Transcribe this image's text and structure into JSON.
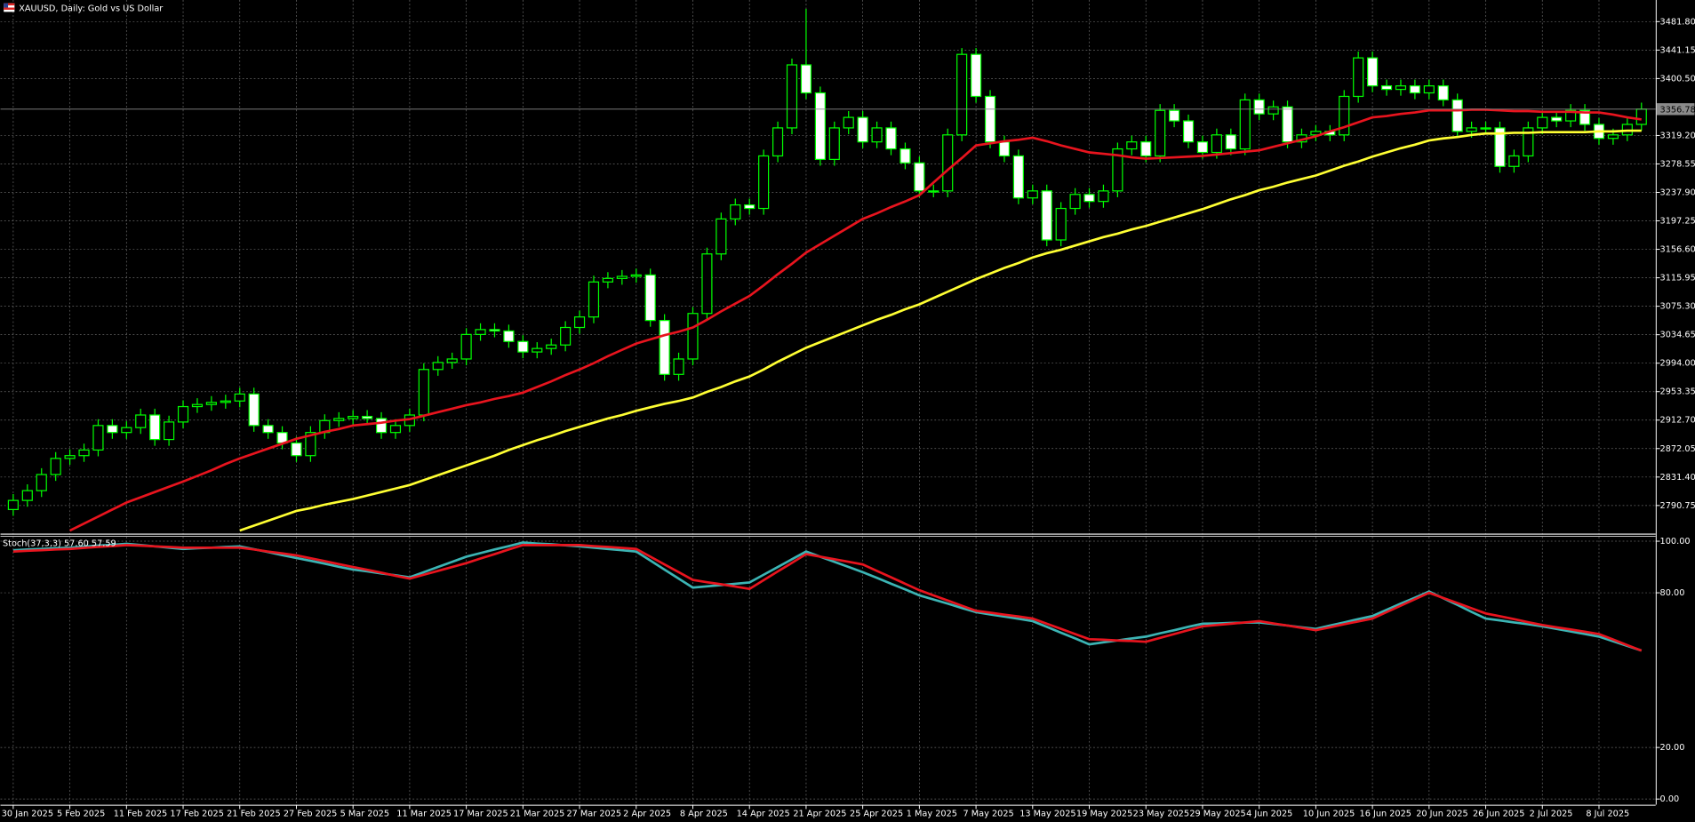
{
  "chart_data": [
    {
      "type": "candlestick",
      "title": "XAUUSD, Daily: Gold vs US Dollar",
      "categories": [
        "30 Jan 2025",
        null,
        null,
        null,
        "5 Feb 2025",
        null,
        null,
        null,
        "11 Feb 2025",
        null,
        null,
        null,
        "17 Feb 2025",
        null,
        null,
        null,
        "21 Feb 2025",
        null,
        null,
        null,
        "27 Feb 2025",
        null,
        null,
        null,
        "5 Mar 2025",
        null,
        null,
        null,
        "11 Mar 2025",
        null,
        null,
        null,
        "17 Mar 2025",
        null,
        null,
        null,
        "21 Mar 2025",
        null,
        null,
        null,
        "27 Mar 2025",
        null,
        null,
        null,
        "2 Apr 2025",
        null,
        null,
        null,
        "8 Apr 2025",
        null,
        null,
        null,
        "14 Apr 2025",
        null,
        null,
        null,
        "21 Apr 2025",
        null,
        null,
        null,
        "25 Apr 2025",
        null,
        null,
        null,
        "1 May 2025",
        null,
        null,
        null,
        "7 May 2025",
        null,
        null,
        null,
        "13 May 2025",
        null,
        null,
        null,
        "19 May 2025",
        null,
        null,
        null,
        "23 May 2025",
        null,
        null,
        null,
        "29 May 2025",
        null,
        null,
        null,
        "4 Jun 2025",
        null,
        null,
        null,
        "10 Jun 2025",
        null,
        null,
        null,
        "16 Jun 2025",
        null,
        null,
        null,
        "20 Jun 2025",
        null,
        null,
        null,
        "26 Jun 2025",
        null,
        null,
        null,
        "2 Jul 2025",
        null,
        null,
        null,
        "8 Jul 2025",
        null,
        null,
        null
      ],
      "open": [
        2785,
        2798,
        2812,
        2835,
        2858,
        2862,
        2870,
        2905,
        2895,
        2902,
        2920,
        2885,
        2910,
        2932,
        2935,
        2938,
        2940,
        2950,
        2905,
        2895,
        2880,
        2862,
        2895,
        2912,
        2915,
        2918,
        2915,
        2895,
        2905,
        2920,
        2985,
        2995,
        3000,
        3035,
        3042,
        3040,
        3025,
        3010,
        3015,
        3020,
        3045,
        3060,
        3110,
        3115,
        3118,
        3120,
        3055,
        2978,
        3000,
        3065,
        3150,
        3200,
        3220,
        3215,
        3290,
        3330,
        3420,
        3380,
        3285,
        3330,
        3345,
        3310,
        3330,
        3300,
        3280,
        3240,
        3240,
        3320,
        3435,
        3375,
        3310,
        3290,
        3230,
        3240,
        3170,
        3215,
        3235,
        3225,
        3240,
        3300,
        3310,
        3290,
        3355,
        3340,
        3310,
        3295,
        3320,
        3300,
        3370,
        3350,
        3360,
        3310,
        3320,
        3325,
        3320,
        3375,
        3430,
        3390,
        3385,
        3390,
        3380,
        3390,
        3370,
        3325,
        3330,
        3330,
        3275,
        3290,
        3330,
        3345,
        3340,
        3355,
        3335,
        3315,
        3320,
        3335
      ],
      "high": [
        2807,
        2821,
        2844,
        2867,
        2871,
        2879,
        2914,
        2914,
        2911,
        2929,
        2929,
        2919,
        2941,
        2944,
        2947,
        2949,
        2959,
        2959,
        2914,
        2904,
        2889,
        2904,
        2921,
        2924,
        2927,
        2927,
        2924,
        2914,
        2929,
        2994,
        3004,
        3009,
        3044,
        3051,
        3051,
        3049,
        3034,
        3024,
        3029,
        3054,
        3069,
        3119,
        3124,
        3127,
        3129,
        3129,
        3064,
        3009,
        3074,
        3159,
        3209,
        3229,
        3229,
        3299,
        3339,
        3429,
        3500,
        3389,
        3339,
        3354,
        3354,
        3339,
        3339,
        3309,
        3289,
        3249,
        3329,
        3444,
        3444,
        3384,
        3319,
        3299,
        3249,
        3249,
        3224,
        3244,
        3244,
        3249,
        3309,
        3319,
        3319,
        3364,
        3364,
        3349,
        3319,
        3329,
        3329,
        3379,
        3379,
        3369,
        3369,
        3329,
        3334,
        3334,
        3384,
        3439,
        3439,
        3399,
        3399,
        3399,
        3399,
        3399,
        3379,
        3339,
        3339,
        3339,
        3299,
        3339,
        3354,
        3354,
        3364,
        3364,
        3344,
        3329,
        3344,
        3366
      ],
      "low": [
        2776,
        2789,
        2803,
        2826,
        2849,
        2853,
        2861,
        2886,
        2886,
        2893,
        2876,
        2876,
        2901,
        2923,
        2926,
        2929,
        2931,
        2896,
        2886,
        2871,
        2853,
        2853,
        2886,
        2903,
        2906,
        2906,
        2886,
        2886,
        2896,
        2911,
        2976,
        2986,
        2991,
        3026,
        3031,
        3016,
        3001,
        3001,
        3006,
        3011,
        3036,
        3051,
        3101,
        3106,
        3109,
        3046,
        2969,
        2969,
        2991,
        3056,
        3141,
        3191,
        3206,
        3206,
        3281,
        3321,
        3371,
        3276,
        3276,
        3321,
        3301,
        3301,
        3291,
        3271,
        3231,
        3231,
        3231,
        3311,
        3366,
        3301,
        3281,
        3221,
        3221,
        3161,
        3161,
        3206,
        3216,
        3216,
        3231,
        3291,
        3281,
        3281,
        3331,
        3301,
        3286,
        3286,
        3291,
        3291,
        3341,
        3341,
        3301,
        3301,
        3311,
        3311,
        3311,
        3366,
        3381,
        3376,
        3376,
        3371,
        3371,
        3361,
        3316,
        3316,
        3321,
        3266,
        3266,
        3281,
        3321,
        3331,
        3331,
        3326,
        3306,
        3306,
        3311,
        3326
      ],
      "close": [
        2798,
        2812,
        2835,
        2858,
        2862,
        2870,
        2905,
        2895,
        2902,
        2920,
        2885,
        2910,
        2932,
        2935,
        2938,
        2940,
        2950,
        2905,
        2895,
        2880,
        2862,
        2895,
        2912,
        2915,
        2918,
        2915,
        2895,
        2905,
        2920,
        2985,
        2995,
        3000,
        3035,
        3042,
        3040,
        3025,
        3010,
        3015,
        3020,
        3045,
        3060,
        3110,
        3115,
        3118,
        3120,
        3055,
        2978,
        3000,
        3065,
        3150,
        3200,
        3220,
        3215,
        3290,
        3330,
        3420,
        3380,
        3285,
        3330,
        3345,
        3310,
        3330,
        3300,
        3280,
        3240,
        3240,
        3320,
        3435,
        3375,
        3310,
        3290,
        3230,
        3240,
        3170,
        3215,
        3235,
        3225,
        3240,
        3300,
        3310,
        3290,
        3355,
        3340,
        3310,
        3295,
        3320,
        3300,
        3370,
        3350,
        3360,
        3310,
        3320,
        3325,
        3320,
        3375,
        3430,
        3390,
        3385,
        3390,
        3380,
        3390,
        3370,
        3325,
        3330,
        3330,
        3275,
        3290,
        3330,
        3345,
        3340,
        3355,
        3335,
        3315,
        3320,
        3335,
        3356.78
      ],
      "up_color": "#00ff00",
      "down_color": "#ffffff",
      "overlays": [
        {
          "color": "#e8141e",
          "values": [
            null,
            null,
            null,
            null,
            2755,
            2765,
            2775,
            2785,
            2795,
            2802.5,
            2810,
            2817.5,
            2825,
            2833,
            2841,
            2850,
            2858,
            2865,
            2872,
            2879,
            2886,
            2891,
            2896,
            2900,
            2905,
            2907,
            2909,
            2912,
            2914,
            2919,
            2924,
            2929,
            2934,
            2938,
            2943,
            2947,
            2952,
            2960,
            2968,
            2977,
            2985,
            2994,
            3004,
            3013,
            3022,
            3028,
            3034,
            3039,
            3045,
            3056,
            3068,
            3079,
            3090,
            3105,
            3121,
            3136,
            3152,
            3164,
            3176,
            3188,
            3200,
            3208,
            3217,
            3225,
            3234,
            3252,
            3270,
            3287,
            3305,
            3308,
            3311,
            3313,
            3316,
            3311,
            3305,
            3300,
            3295,
            3293,
            3291,
            3288,
            3286,
            3287,
            3288,
            3289,
            3290,
            3292,
            3294,
            3296,
            3298,
            3303,
            3308,
            3313,
            3318,
            3325,
            3331,
            3338,
            3345,
            3347,
            3350,
            3352,
            3355,
            3355,
            3355,
            3356,
            3356,
            3355,
            3354,
            3354,
            3353,
            3353,
            3353,
            3352,
            3352,
            3349,
            3345,
            3342
          ]
        },
        {
          "color": "#ffff33",
          "values": [
            null,
            null,
            null,
            null,
            null,
            null,
            null,
            null,
            null,
            null,
            null,
            null,
            null,
            null,
            null,
            null,
            2755,
            2762,
            2769,
            2776,
            2783,
            2787,
            2792,
            2796,
            2800,
            2805,
            2810,
            2815,
            2820,
            2827,
            2834,
            2841,
            2848,
            2855,
            2862,
            2870,
            2877,
            2884,
            2890,
            2897,
            2903,
            2909,
            2915,
            2920,
            2926,
            2931,
            2936,
            2940,
            2945,
            2953,
            2960,
            2968,
            2975,
            2985,
            2996,
            3006,
            3016,
            3024,
            3032,
            3040,
            3048,
            3056,
            3063,
            3071,
            3078,
            3087,
            3096,
            3105,
            3114,
            3122,
            3130,
            3137,
            3145,
            3151,
            3156,
            3162,
            3168,
            3174,
            3179,
            3185,
            3190,
            3196,
            3202,
            3208,
            3214,
            3221,
            3228,
            3234,
            3241,
            3246,
            3252,
            3257,
            3262,
            3269,
            3276,
            3282,
            3289,
            3295,
            3301,
            3306,
            3312,
            3315,
            3317,
            3320,
            3322,
            3322,
            3323,
            3323,
            3324,
            3324,
            3324,
            3324,
            3325,
            3325,
            3326,
            3326
          ]
        }
      ],
      "current_price": {
        "value": 3356.78,
        "label": "3356.78"
      },
      "xlim": [
        -0.9,
        116
      ],
      "ylim": [
        2752.18,
        3512.65
      ],
      "yticks": [
        {
          "value": 2790.75,
          "label": "2790.75"
        },
        {
          "value": 2831.4,
          "label": "2831.40"
        },
        {
          "value": 2872.05,
          "label": "2872.05"
        },
        {
          "value": 2912.7,
          "label": "2912.70"
        },
        {
          "value": 2953.35,
          "label": "2953.35"
        },
        {
          "value": 2994,
          "label": "2994.00"
        },
        {
          "value": 3034.65,
          "label": "3034.65"
        },
        {
          "value": 3075.3,
          "label": "3075.30"
        },
        {
          "value": 3115.95,
          "label": "3115.95"
        },
        {
          "value": 3156.6,
          "label": "3156.60"
        },
        {
          "value": 3197.25,
          "label": "3197.25"
        },
        {
          "value": 3237.9,
          "label": "3237.90"
        },
        {
          "value": 3278.55,
          "label": "3278.55"
        },
        {
          "value": 3319.2,
          "label": "3319.20"
        },
        {
          "value": 3400.5,
          "label": "3400.50"
        },
        {
          "value": 3441.15,
          "label": "3441.15"
        },
        {
          "value": 3481.8,
          "label": "3481.80"
        }
      ],
      "grid": true
    },
    {
      "type": "line",
      "title": "Stoch(37,3,3)",
      "series": [
        {
          "color": "#3cb4b4",
          "last_value_label": "57.60",
          "values": [
            96.5,
            96.8,
            97,
            97.3,
            97.5,
            97.9,
            98.3,
            98.6,
            99,
            98.5,
            98,
            97.5,
            97,
            97.3,
            97.5,
            97.8,
            98,
            96.9,
            95.8,
            94.6,
            93.5,
            92.4,
            91.3,
            90.1,
            89,
            88.3,
            87.5,
            86.8,
            86,
            88,
            90,
            92,
            94,
            95.4,
            96.8,
            98.1,
            99.5,
            99.1,
            98.8,
            98.4,
            98,
            97.5,
            97,
            96.5,
            96,
            92.5,
            89,
            85.5,
            82,
            82.5,
            83,
            83.5,
            84,
            87,
            90,
            93,
            96,
            94,
            92,
            90,
            88,
            85.8,
            83.5,
            81.3,
            79,
            77.4,
            75.8,
            74.1,
            72.5,
            71.6,
            70.8,
            69.9,
            69,
            66.8,
            64.5,
            62.3,
            60,
            60.8,
            61.5,
            62.3,
            63,
            64.3,
            65.5,
            66.8,
            68,
            68.1,
            68.3,
            68.4,
            68.5,
            67.9,
            67.3,
            66.6,
            66,
            67.3,
            68.5,
            69.8,
            71,
            73.4,
            75.8,
            78.1,
            80.5,
            77.9,
            75.3,
            72.6,
            70,
            69.3,
            68.5,
            67.8,
            67,
            66,
            65,
            64,
            63,
            61.2,
            59.4,
            57.6
          ]
        },
        {
          "color": "#e8141e",
          "last_value_label": "57.59",
          "values": [
            96,
            96.3,
            96.5,
            96.8,
            97,
            97.4,
            97.8,
            98.1,
            98.5,
            98.3,
            98,
            97.8,
            97.5,
            97.5,
            97.5,
            97.5,
            97.5,
            96.8,
            96,
            95.3,
            94.5,
            93.4,
            92.3,
            91.1,
            90,
            88.9,
            87.8,
            86.6,
            85.5,
            87,
            88.5,
            90,
            91.5,
            93.3,
            95,
            96.8,
            98.5,
            98.5,
            98.5,
            98.5,
            98.5,
            98.1,
            97.8,
            97.4,
            97,
            94,
            91,
            88,
            85,
            84.1,
            83.3,
            82.4,
            81.5,
            84.9,
            88.3,
            91.6,
            95,
            94,
            93,
            92,
            91,
            88.5,
            86,
            83.5,
            81,
            79,
            77,
            75,
            73,
            72.3,
            71.5,
            70.8,
            70,
            68,
            66,
            64,
            62,
            61.8,
            61.5,
            61.3,
            61,
            62.5,
            64,
            65.5,
            67,
            67.5,
            68,
            68.5,
            69,
            68.1,
            67.3,
            66.4,
            65.5,
            66.6,
            67.8,
            68.9,
            70,
            72.5,
            75,
            77.5,
            80,
            78,
            76,
            74,
            72,
            70.9,
            69.8,
            68.6,
            67.5,
            66.6,
            65.8,
            64.9,
            64,
            61.9,
            59.7,
            57.59
          ]
        }
      ],
      "ylim": [
        -2.2,
        101.7
      ],
      "yticks": [
        {
          "value": 0,
          "label": "0.00"
        },
        {
          "value": 20,
          "label": "20.00"
        },
        {
          "value": 80,
          "label": "80.00"
        },
        {
          "value": 100,
          "label": "100.00"
        }
      ],
      "grid": true
    }
  ]
}
